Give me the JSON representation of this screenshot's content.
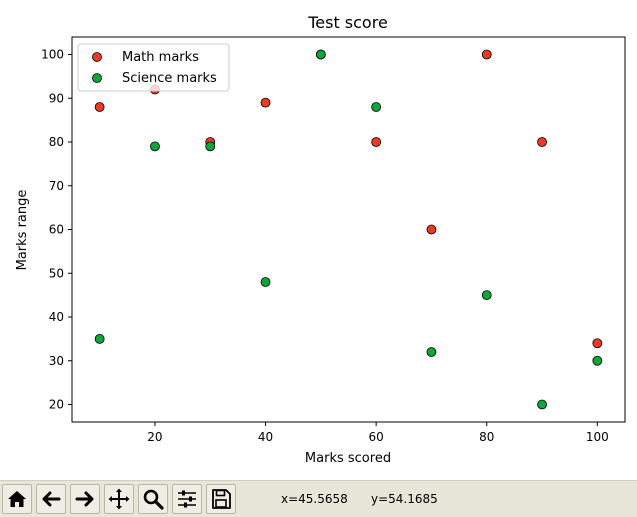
{
  "chart_data": {
    "type": "scatter",
    "title": "Test score",
    "xlabel": "Marks scored",
    "ylabel": "Marks range",
    "xlim": [
      5,
      105
    ],
    "ylim": [
      16,
      104
    ],
    "xticks": [
      20,
      40,
      60,
      80,
      100
    ],
    "yticks": [
      20,
      30,
      40,
      50,
      60,
      70,
      80,
      90,
      100
    ],
    "grid": false,
    "legend_position": "top-left",
    "series": [
      {
        "name": "Math marks",
        "color": "#ee3a24",
        "x": [
          10,
          20,
          30,
          40,
          50,
          60,
          70,
          80,
          90,
          100
        ],
        "y": [
          88,
          92,
          80,
          89,
          100,
          80,
          60,
          100,
          80,
          34
        ]
      },
      {
        "name": "Science marks",
        "color": "#10a53a",
        "x": [
          10,
          20,
          30,
          40,
          50,
          60,
          70,
          80,
          90,
          100
        ],
        "y": [
          35,
          79,
          79,
          48,
          100,
          88,
          32,
          45,
          20,
          30
        ]
      }
    ]
  },
  "toolbar": {
    "buttons": [
      {
        "icon": "home-icon"
      },
      {
        "icon": "back-arrow-icon"
      },
      {
        "icon": "forward-arrow-icon"
      },
      {
        "icon": "pan-icon"
      },
      {
        "icon": "zoom-icon"
      },
      {
        "icon": "configure-subplots-icon"
      },
      {
        "icon": "save-icon"
      }
    ],
    "x_readout": "x=45.5658",
    "y_readout": "y=54.1685"
  }
}
